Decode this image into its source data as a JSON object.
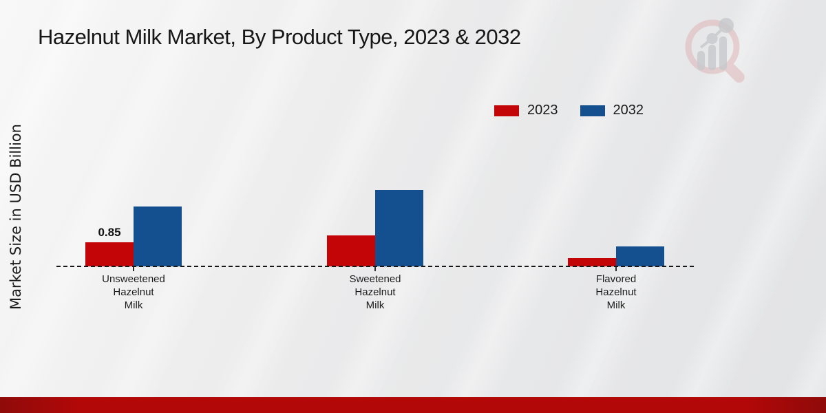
{
  "title": "Hazelnut Milk Market, By Product Type, 2023 & 2032",
  "y_axis_label": "Market Size in USD Billion",
  "legend": {
    "items": [
      {
        "label": "2023"
      },
      {
        "label": "2032"
      }
    ]
  },
  "footer_color": "#b30808",
  "watermark_icon": "market-research-future-magnifier-bar-chart-logo",
  "chart_data": {
    "type": "bar",
    "title": "Hazelnut Milk Market, By Product Type, 2023 & 2032",
    "xlabel": "",
    "ylabel": "Market Size in USD Billion",
    "categories": [
      "Unsweetened\nHazelnut\nMilk",
      "Sweetened\nHazelnut\nMilk",
      "Flavored\nHazelnut\nMilk"
    ],
    "series": [
      {
        "name": "2023",
        "color": "#c40508",
        "values": [
          0.85,
          1.1,
          0.3
        ]
      },
      {
        "name": "2032",
        "color": "#14508f",
        "values": [
          2.1,
          2.7,
          0.7
        ]
      }
    ],
    "bar_labels": [
      {
        "series_index": 0,
        "category_index": 0,
        "text": "0.85"
      }
    ],
    "ylim": [
      0,
      3
    ],
    "grid": false,
    "baseline_style": "dashed",
    "legend_position": "top-right"
  }
}
